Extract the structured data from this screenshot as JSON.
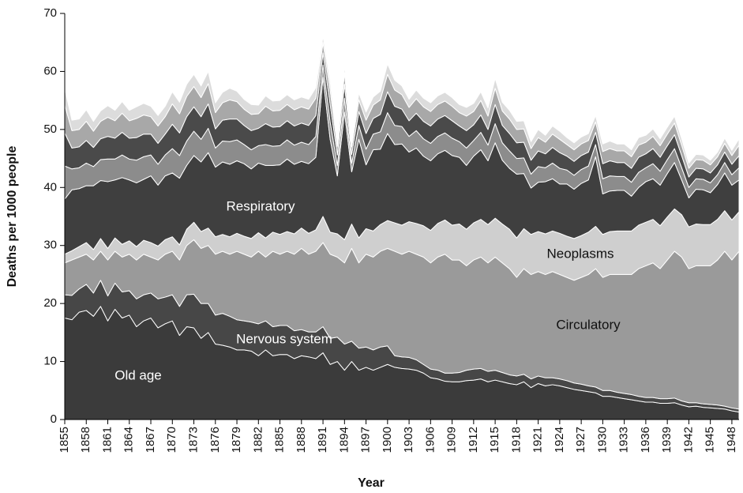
{
  "chart_data": {
    "type": "stacked_area",
    "x_label": "Year",
    "y_label": "Deaths per 1000 people",
    "x": [
      1855,
      1856,
      1857,
      1858,
      1859,
      1860,
      1861,
      1862,
      1863,
      1864,
      1865,
      1866,
      1867,
      1868,
      1869,
      1870,
      1871,
      1872,
      1873,
      1874,
      1875,
      1876,
      1877,
      1878,
      1879,
      1880,
      1881,
      1882,
      1883,
      1884,
      1885,
      1886,
      1887,
      1888,
      1889,
      1890,
      1891,
      1892,
      1893,
      1894,
      1895,
      1896,
      1897,
      1898,
      1899,
      1900,
      1901,
      1902,
      1903,
      1904,
      1905,
      1906,
      1907,
      1908,
      1909,
      1910,
      1911,
      1912,
      1913,
      1914,
      1915,
      1916,
      1917,
      1918,
      1919,
      1920,
      1921,
      1922,
      1923,
      1924,
      1925,
      1926,
      1927,
      1928,
      1929,
      1930,
      1931,
      1932,
      1933,
      1934,
      1935,
      1936,
      1937,
      1938,
      1939,
      1940,
      1941,
      1942,
      1943,
      1944,
      1945,
      1946,
      1947,
      1948,
      1949
    ],
    "xlim": [
      1855,
      1949
    ],
    "xticks": [
      1855,
      1858,
      1861,
      1864,
      1867,
      1870,
      1873,
      1876,
      1879,
      1882,
      1885,
      1888,
      1891,
      1894,
      1897,
      1900,
      1903,
      1906,
      1909,
      1912,
      1915,
      1918,
      1921,
      1924,
      1927,
      1930,
      1933,
      1936,
      1939,
      1942,
      1945,
      1948
    ],
    "ylim": [
      0,
      70
    ],
    "yticks": [
      0,
      10,
      20,
      30,
      40,
      50,
      60,
      70
    ],
    "series": [
      {
        "name": "Old age",
        "color": "#3b3b3b",
        "values": [
          17.5,
          17.2,
          18.5,
          18.8,
          17.8,
          19.5,
          17,
          19,
          17.5,
          18,
          16,
          17,
          17.5,
          15.8,
          16.5,
          17,
          14.5,
          16,
          15.8,
          14,
          15,
          13,
          12.8,
          12.5,
          12,
          12,
          11.8,
          11,
          12,
          11,
          11.2,
          11.2,
          10.5,
          11,
          10.8,
          10.5,
          11.5,
          9.5,
          10,
          8.5,
          10,
          8.5,
          9,
          8.5,
          9,
          9.5,
          9,
          8.8,
          8.7,
          8.5,
          8,
          7.2,
          7,
          6.6,
          6.5,
          6.5,
          6.7,
          6.8,
          7,
          6.5,
          6.8,
          6.5,
          6.2,
          6,
          6.5,
          5.5,
          6.2,
          5.8,
          6,
          5.8,
          5.5,
          5.2,
          5,
          4.8,
          4.6,
          4,
          4,
          3.8,
          3.6,
          3.4,
          3.2,
          3,
          3,
          2.8,
          2.8,
          2.9,
          2.5,
          2.2,
          2.3,
          2.1,
          2,
          1.9,
          1.8,
          1.5,
          1.3
        ]
      },
      {
        "name": "Nervous system",
        "color": "#474747",
        "values": [
          4,
          4.2,
          4,
          4.5,
          4,
          4.5,
          4.3,
          4.5,
          4.5,
          4.2,
          4.8,
          4.5,
          4.3,
          5,
          4.6,
          4.5,
          5,
          5.5,
          5.8,
          6,
          5,
          5,
          5.5,
          5.3,
          5.2,
          5,
          5,
          5.5,
          5,
          5,
          5,
          5,
          4.8,
          4.5,
          4.3,
          4.6,
          4.5,
          4.5,
          4.2,
          4.5,
          3.5,
          3.8,
          3.5,
          3.5,
          3.5,
          3.2,
          2,
          2,
          2,
          1.8,
          1.5,
          1.5,
          1.5,
          1.4,
          1.5,
          1.6,
          1.8,
          1.9,
          1.8,
          1.8,
          1.7,
          1.6,
          1.5,
          1.5,
          1.3,
          1.5,
          1.3,
          1.4,
          1.2,
          1.2,
          1.2,
          1.1,
          1.1,
          1,
          1,
          1,
          1,
          0.9,
          0.9,
          0.9,
          0.8,
          0.8,
          0.8,
          0.8,
          0.8,
          0.8,
          0.7,
          0.7,
          0.6,
          0.6,
          0.6,
          0.6,
          0.5,
          0.5,
          0.5
        ]
      },
      {
        "name": "Circulatory",
        "color": "#9a9a9a",
        "values": [
          5.5,
          6.1,
          5.5,
          5.2,
          5.7,
          5,
          6.2,
          5.5,
          6,
          6.3,
          6.7,
          7,
          6.2,
          6.7,
          7.4,
          7.5,
          8,
          8.5,
          9.4,
          9.5,
          10,
          10.5,
          10.7,
          10.7,
          11.8,
          11.5,
          11.2,
          12.5,
          11,
          13,
          12.3,
          12.8,
          13.2,
          14,
          13.4,
          13.9,
          14.5,
          14.5,
          13.8,
          14,
          16,
          14.7,
          16,
          16,
          16.5,
          16.8,
          18,
          17.7,
          18.3,
          18.2,
          18.5,
          18.3,
          19.5,
          20.5,
          19.5,
          19.4,
          18,
          18.8,
          19.2,
          18.7,
          19.5,
          18.9,
          18.3,
          17,
          18.2,
          18,
          18,
          17.8,
          18.3,
          18,
          17.8,
          17.7,
          18.4,
          19.2,
          20.4,
          19.5,
          20,
          20.3,
          20.5,
          20.7,
          22,
          22.7,
          23.2,
          22.4,
          23.9,
          25.3,
          24.8,
          23.1,
          23.6,
          23.8,
          23.9,
          25,
          26.7,
          25.5,
          27.2
        ]
      },
      {
        "name": "Neoplasms",
        "color": "#cfcfcf",
        "values": [
          1.5,
          1.6,
          1.8,
          2,
          1.8,
          2.2,
          2,
          2.3,
          2.2,
          2.3,
          2.3,
          2.4,
          2.5,
          2.4,
          2.5,
          2.5,
          2.6,
          2.8,
          3,
          2.9,
          3,
          3,
          2.9,
          3,
          3.1,
          3.1,
          3.2,
          3.2,
          3.3,
          3.3,
          3.4,
          3.4,
          3.5,
          3.5,
          3.6,
          3.7,
          4.5,
          3.8,
          4,
          4,
          4.2,
          4.3,
          4.4,
          4.5,
          4.6,
          4.8,
          4.9,
          5,
          5.1,
          5.3,
          5.4,
          5.6,
          5.8,
          5.9,
          6,
          6.2,
          6.3,
          6.4,
          6.5,
          6.6,
          6.7,
          6.7,
          6.8,
          6.8,
          6.9,
          6.9,
          6.9,
          7,
          7,
          7.1,
          7.1,
          7.2,
          7.2,
          7.3,
          7.3,
          7.4,
          7.4,
          7.5,
          7.5,
          7.5,
          7.5,
          7.5,
          7.5,
          7.4,
          7.4,
          7.3,
          7.3,
          7.2,
          7.2,
          7.1,
          7.1,
          7,
          7,
          6.9,
          6.8
        ]
      },
      {
        "name": "Respiratory",
        "color": "#3f3f3f",
        "values": [
          9.5,
          10.5,
          10,
          9.8,
          11,
          10,
          11.5,
          10,
          11.5,
          10.5,
          11,
          10.5,
          11.5,
          10.5,
          11,
          11,
          11.5,
          11,
          11.5,
          12,
          13,
          12,
          12.5,
          12.5,
          12.5,
          12.5,
          12,
          12,
          12.5,
          11.5,
          12,
          12.5,
          12,
          11.5,
          12,
          12.5,
          24,
          16,
          10,
          22,
          9,
          17,
          11,
          14,
          13,
          15,
          13.5,
          14,
          12,
          13,
          12,
          12,
          12,
          12,
          12,
          11.5,
          11,
          11.5,
          12,
          11,
          13,
          11,
          10.5,
          11,
          9.5,
          8,
          8.5,
          9,
          9,
          8.5,
          9,
          8.5,
          9,
          9,
          12,
          7,
          7,
          7,
          7,
          6,
          6.5,
          7,
          7,
          7,
          7.5,
          8,
          6,
          5,
          6,
          6,
          5.5,
          6,
          6.5,
          6,
          5.5
        ]
      },
      {
        "color": "#8c8c8c",
        "values": [
          5.7,
          3.6,
          3.6,
          3.9,
          3.3,
          3.6,
          3.9,
          3.6,
          3.9,
          3.6,
          3.9,
          3.9,
          3.6,
          3.6,
          3.6,
          4.2,
          3.9,
          4.2,
          4.2,
          3.9,
          4.2,
          3.3,
          3.6,
          3.9,
          3.6,
          3.3,
          3.3,
          3,
          3.6,
          3.3,
          3.3,
          3.3,
          3.3,
          3.3,
          3.3,
          3.6,
          2.1,
          3,
          1.8,
          2.4,
          1.5,
          2.4,
          2.7,
          2.7,
          3,
          3.6,
          3.3,
          3,
          2.7,
          3,
          3,
          3,
          3,
          3,
          3,
          2.7,
          3,
          2.7,
          3,
          2.7,
          3.3,
          3,
          3,
          2.7,
          2.7,
          2.4,
          2.7,
          2.4,
          2.7,
          2.7,
          2.4,
          2.4,
          2.4,
          2.4,
          2.1,
          2.6,
          2.6,
          2.4,
          2.4,
          2.4,
          2.6,
          2.4,
          2.6,
          2.4,
          2.4,
          2.4,
          2.1,
          1.8,
          1.8,
          1.8,
          1.7,
          1.7,
          1.8,
          1.8,
          2.1
        ]
      },
      {
        "color": "#4a4a4a",
        "values": [
          5.7,
          3.6,
          3.6,
          3.9,
          3.3,
          3.6,
          3.9,
          3.6,
          3.9,
          3.6,
          3.9,
          3.9,
          3.6,
          3.6,
          3.6,
          4.2,
          3.9,
          4.2,
          4.2,
          3.9,
          4.2,
          3.3,
          3.6,
          3.9,
          3.6,
          3.3,
          3.3,
          3,
          3.6,
          3.3,
          3.3,
          3.3,
          3.3,
          3.3,
          3.3,
          3.6,
          2.1,
          3,
          1.8,
          2.4,
          1.5,
          2.4,
          2.7,
          2.7,
          3,
          3.6,
          3.3,
          3,
          2.7,
          3,
          3,
          3,
          3,
          3,
          3,
          2.7,
          3,
          2.7,
          3,
          2.7,
          3.3,
          3,
          3,
          2.7,
          2.7,
          2.4,
          2.7,
          2.4,
          2.7,
          2.7,
          2.4,
          2.4,
          2.4,
          2.4,
          2.1,
          2.6,
          2.6,
          2.4,
          2.4,
          2.4,
          2.6,
          2.4,
          2.6,
          2.4,
          2.4,
          2.4,
          2.1,
          1.8,
          1.8,
          1.8,
          1.7,
          1.7,
          1.8,
          1.8,
          2.1
        ]
      },
      {
        "color": "#a8a8a8",
        "values": [
          4.8,
          3,
          3,
          3.3,
          2.8,
          3,
          3.3,
          3,
          3.3,
          3,
          3.3,
          3.3,
          3,
          3,
          3,
          3.5,
          3.3,
          3.5,
          3.5,
          3.3,
          3.5,
          2.8,
          3,
          3.3,
          3,
          2.8,
          2.8,
          2.5,
          3,
          2.8,
          2.8,
          2.8,
          2.8,
          2.8,
          2.8,
          3,
          1.8,
          2.5,
          1.5,
          2,
          1.3,
          2,
          2.3,
          2.3,
          2.5,
          3,
          2.8,
          2.5,
          2.3,
          2.5,
          2.5,
          2.5,
          2.5,
          2.5,
          2.5,
          2.3,
          2.5,
          2.3,
          2.5,
          2.3,
          2.8,
          2.5,
          2.5,
          2.3,
          2.3,
          2,
          2.3,
          2,
          2.3,
          2.3,
          2,
          2,
          2,
          2,
          1.8,
          2.1,
          2.1,
          2,
          2,
          2,
          2.1,
          2,
          2.1,
          2,
          2,
          2,
          1.8,
          1.5,
          1.5,
          1.5,
          1.4,
          1.4,
          1.5,
          1.5,
          1.8
        ]
      },
      {
        "color": "#dcdcdc",
        "values": [
          2.9,
          1.8,
          1.8,
          2,
          1.7,
          1.8,
          2,
          1.8,
          2,
          1.8,
          2,
          2,
          1.8,
          1.8,
          1.8,
          2.1,
          2,
          2.1,
          2.1,
          2,
          2.1,
          1.7,
          1.8,
          2,
          1.8,
          1.7,
          1.7,
          1.5,
          1.8,
          1.7,
          1.7,
          1.7,
          1.7,
          1.7,
          1.7,
          1.8,
          1.1,
          1.5,
          0.9,
          1.2,
          0.8,
          1.2,
          1.4,
          1.4,
          1.5,
          1.8,
          1.7,
          1.5,
          1.4,
          1.5,
          1.5,
          1.5,
          1.5,
          1.5,
          1.5,
          1.4,
          1.5,
          1.4,
          1.5,
          1.4,
          1.7,
          1.5,
          1.5,
          1.4,
          1.4,
          1.2,
          1.4,
          1.2,
          1.4,
          1.4,
          1.2,
          1.2,
          1.2,
          1.2,
          1.1,
          1.3,
          1.3,
          1.2,
          1.2,
          1.2,
          1.3,
          1.2,
          1.3,
          1.2,
          1.2,
          1.2,
          1.1,
          0.9,
          0.9,
          0.9,
          0.8,
          0.8,
          0.9,
          0.9,
          1.1
        ]
      }
    ]
  }
}
